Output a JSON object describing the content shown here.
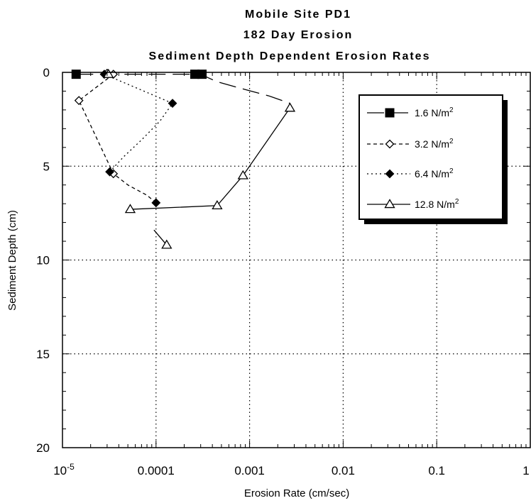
{
  "chart_data": {
    "type": "scatter",
    "title_lines": [
      "Mobile Site PD1",
      "182 Day Erosion",
      "Sediment Depth Dependent Erosion Rates"
    ],
    "xlabel": "Erosion Rate (cm/sec)",
    "ylabel": "Sediment Depth (cm)",
    "x_scale": "log",
    "xlim": [
      1e-05,
      1
    ],
    "ylim": [
      20,
      0
    ],
    "y_inverted": true,
    "x_ticks": [
      {
        "value": 1e-05,
        "base": "10",
        "exp": "-5"
      },
      {
        "value": 0.0001,
        "label": "0.0001"
      },
      {
        "value": 0.001,
        "label": "0.001"
      },
      {
        "value": 0.01,
        "label": "0.01"
      },
      {
        "value": 0.1,
        "label": "0.1"
      },
      {
        "value": 1,
        "label": "1"
      }
    ],
    "y_ticks": [
      {
        "value": 0,
        "label": "0"
      },
      {
        "value": 5,
        "label": "5"
      },
      {
        "value": 10,
        "label": "10"
      },
      {
        "value": 15,
        "label": "15"
      },
      {
        "value": 20,
        "label": "20"
      }
    ],
    "grid": true,
    "legend_position": "top-right",
    "series": [
      {
        "name": "1.6 N/m",
        "unit_sup": "2",
        "marker": "filled-square",
        "line": "long-dash",
        "points": [
          [
            1.4e-05,
            0.1
          ],
          [
            0.00026,
            0.1
          ],
          [
            0.00031,
            0.1
          ]
        ],
        "line_points": [
          [
            1.4e-05,
            0.1
          ],
          [
            0.00026,
            0.1
          ],
          [
            0.00033,
            0.2
          ],
          [
            0.00045,
            0.5
          ],
          [
            0.0008,
            0.85
          ],
          [
            0.0016,
            1.25
          ],
          [
            0.0027,
            1.65
          ]
        ]
      },
      {
        "name": "3.2 N/m",
        "unit_sup": "2",
        "marker": "open-diamond",
        "line": "short-dash",
        "points": [
          [
            3e-05,
            0.05
          ],
          [
            3.5e-05,
            0.1
          ],
          [
            1.5e-05,
            1.5
          ],
          [
            3.5e-05,
            5.4
          ]
        ],
        "line_points": [
          [
            3e-05,
            0.05
          ],
          [
            3.5e-05,
            0.1
          ],
          [
            1.5e-05,
            1.5
          ],
          [
            3.5e-05,
            5.4
          ],
          [
            5e-05,
            6.0
          ],
          [
            8e-05,
            6.55
          ],
          [
            0.0001,
            6.95
          ]
        ]
      },
      {
        "name": "6.4 N/m",
        "unit_sup": "2",
        "marker": "filled-diamond",
        "line": "dotted",
        "points": [
          [
            2.8e-05,
            0.1
          ],
          [
            0.00015,
            1.65
          ],
          [
            3.2e-05,
            5.3
          ],
          [
            0.0001,
            6.95
          ]
        ],
        "line_points": [
          [
            2.8e-05,
            0.1
          ],
          [
            0.00015,
            1.65
          ],
          [
            0.00011,
            2.6
          ],
          [
            7e-05,
            3.6
          ],
          [
            4.5e-05,
            4.5
          ],
          [
            3.2e-05,
            5.3
          ]
        ]
      },
      {
        "name": "12.8 N/m",
        "unit_sup": "2",
        "marker": "open-triangle",
        "line": "solid",
        "points": [
          [
            3.1e-05,
            0.1
          ],
          [
            0.0027,
            1.9
          ],
          [
            0.00085,
            5.5
          ],
          [
            0.00045,
            7.1
          ],
          [
            5.3e-05,
            7.3
          ],
          [
            0.00013,
            9.2
          ]
        ],
        "line_points": [
          [
            0.0027,
            1.9
          ],
          [
            0.00085,
            5.5
          ],
          [
            0.00045,
            7.1
          ],
          [
            5.3e-05,
            7.3
          ]
        ],
        "extra_segment": [
          [
            9.5e-05,
            8.4
          ],
          [
            0.00013,
            9.2
          ]
        ]
      }
    ]
  }
}
